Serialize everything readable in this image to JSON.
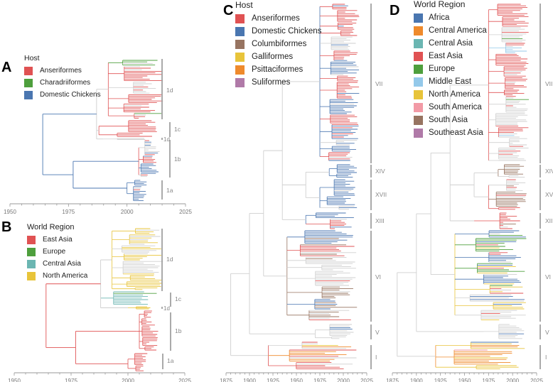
{
  "panels": {
    "A": {
      "label": "A",
      "legend_title": "Host",
      "legend": [
        {
          "name": "Anseriformes",
          "color": "#e05253"
        },
        {
          "name": "Charadriiformes",
          "color": "#4e9f3d"
        },
        {
          "name": "Domestic Chickens",
          "color": "#4a76b0"
        }
      ],
      "clades": [
        "1d",
        "1c",
        "1d",
        "1b",
        "1a"
      ],
      "axis_ticks": [
        "1950",
        "1975",
        "2000",
        "2025"
      ]
    },
    "B": {
      "label": "B",
      "legend_title": "World Region",
      "legend": [
        {
          "name": "East Asia",
          "color": "#e05253"
        },
        {
          "name": "Europe",
          "color": "#4e9f3d"
        },
        {
          "name": "Central Asia",
          "color": "#6bb6b2"
        },
        {
          "name": "North America",
          "color": "#e8c43a"
        }
      ],
      "clades": [
        "1d",
        "1c",
        "1d",
        "1b",
        "1a"
      ],
      "axis_ticks": [
        "1950",
        "1975",
        "2000",
        "2025"
      ]
    },
    "C": {
      "label": "C",
      "legend_title": "Host",
      "legend": [
        {
          "name": "Anseriformes",
          "color": "#e05253"
        },
        {
          "name": "Domestic Chickens",
          "color": "#4a76b0"
        },
        {
          "name": "Columbiformes",
          "color": "#977461"
        },
        {
          "name": "Galliformes",
          "color": "#e8c43a"
        },
        {
          "name": "Psittaciformes",
          "color": "#ef8a2c"
        },
        {
          "name": "Suliformes",
          "color": "#b07aa8"
        }
      ],
      "clades": [
        "VII",
        "XIV",
        "XVII",
        "XIII",
        "VI",
        "V",
        "I"
      ],
      "axis_ticks": [
        "1875",
        "1900",
        "1925",
        "1950",
        "1975",
        "2000",
        "2025"
      ]
    },
    "D": {
      "label": "D",
      "legend_title": "World Region",
      "legend": [
        {
          "name": "Africa",
          "color": "#4a76b0"
        },
        {
          "name": "Central America",
          "color": "#ef8a2c"
        },
        {
          "name": "Central Asia",
          "color": "#6bb6b2"
        },
        {
          "name": "East Asia",
          "color": "#e05253"
        },
        {
          "name": "Europe",
          "color": "#4e9f3d"
        },
        {
          "name": "Middle East",
          "color": "#94c9ea"
        },
        {
          "name": "North America",
          "color": "#e8c43a"
        },
        {
          "name": "South America",
          "color": "#f29aa6"
        },
        {
          "name": "South Asia",
          "color": "#977461"
        },
        {
          "name": "Southeast Asia",
          "color": "#b07aa8"
        }
      ],
      "clades": [
        "VII",
        "XIV",
        "XVII",
        "XIII",
        "VI",
        "V",
        "I"
      ],
      "axis_ticks": [
        "1875",
        "1900",
        "1925",
        "1950",
        "1975",
        "2000",
        "2025"
      ]
    }
  },
  "colors": {
    "unassigned": "#cfcfcf",
    "axis": "#999999",
    "clade_bar": "#a0a0a0"
  }
}
